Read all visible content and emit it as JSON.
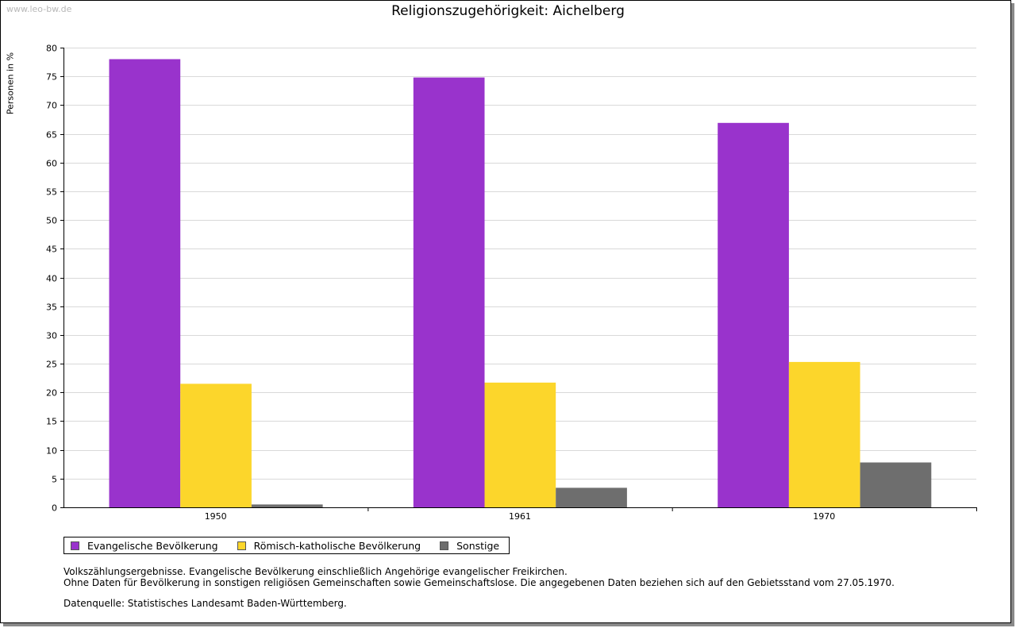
{
  "watermark": "www.leo-bw.de",
  "colors": {
    "evangelisch": "#9933cc",
    "katholisch": "#fcd62b",
    "sonstige": "#6e6e6e"
  },
  "chart_data": {
    "type": "bar",
    "title": "Religionszugehörigkeit: Aichelberg",
    "xlabel": "",
    "ylabel": "Personen in %",
    "ylim": [
      0,
      80
    ],
    "ytick_step": 5,
    "grid": true,
    "categories": [
      "1950",
      "1961",
      "1970"
    ],
    "series": [
      {
        "name": "Evangelische Bevölkerung",
        "color_key": "evangelisch",
        "values": [
          78.0,
          74.8,
          66.9
        ]
      },
      {
        "name": "Römisch-katholische Bevölkerung",
        "color_key": "katholisch",
        "values": [
          21.5,
          21.7,
          25.3
        ]
      },
      {
        "name": "Sonstige",
        "color_key": "sonstige",
        "values": [
          0.5,
          3.4,
          7.8
        ]
      }
    ],
    "legend_position": "bottom-left"
  },
  "notes": {
    "line1": "Volkszählungsergebnisse. Evangelische Bevölkerung einschließlich Angehörige evangelischer Freikirchen.",
    "line2": "Ohne Daten für Bevölkerung in sonstigen religiösen Gemeinschaften sowie Gemeinschaftslose. Die angegebenen Daten beziehen sich auf den Gebietsstand vom 27.05.1970.",
    "source": "Datenquelle: Statistisches Landesamt Baden-Württemberg."
  }
}
